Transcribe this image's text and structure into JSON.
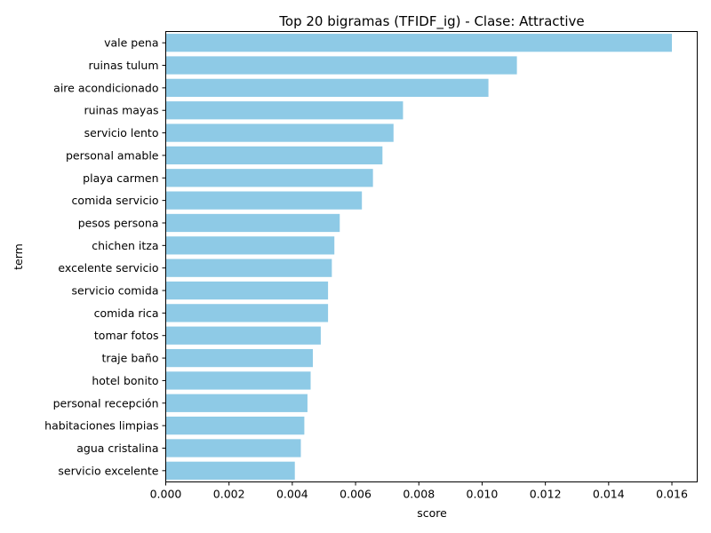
{
  "chart_data": {
    "type": "bar",
    "orientation": "horizontal",
    "title": "Top 20 bigramas (TFIDF_ig) - Clase: Attractive",
    "xlabel": "score",
    "ylabel": "term",
    "xlim": [
      0,
      0.0168
    ],
    "xticks": [
      "0.000",
      "0.002",
      "0.004",
      "0.006",
      "0.008",
      "0.010",
      "0.012",
      "0.014",
      "0.016"
    ],
    "grid": false,
    "bar_color": "#8ecae6",
    "categories": [
      "vale pena",
      "ruinas tulum",
      "aire acondicionado",
      "ruinas mayas",
      "servicio lento",
      "personal amable",
      "playa carmen",
      "comida servicio",
      "pesos persona",
      "chichen itza",
      "excelente servicio",
      "servicio comida",
      "comida rica",
      "tomar fotos",
      "traje baño",
      "hotel bonito",
      "personal recepción",
      "habitaciones limpias",
      "agua cristalina",
      "servicio excelente"
    ],
    "values": [
      0.016,
      0.0111,
      0.0102,
      0.0075,
      0.0072,
      0.00685,
      0.00655,
      0.0062,
      0.0055,
      0.00533,
      0.00525,
      0.00513,
      0.00513,
      0.0049,
      0.00465,
      0.00458,
      0.00448,
      0.00438,
      0.00427,
      0.00408
    ]
  }
}
